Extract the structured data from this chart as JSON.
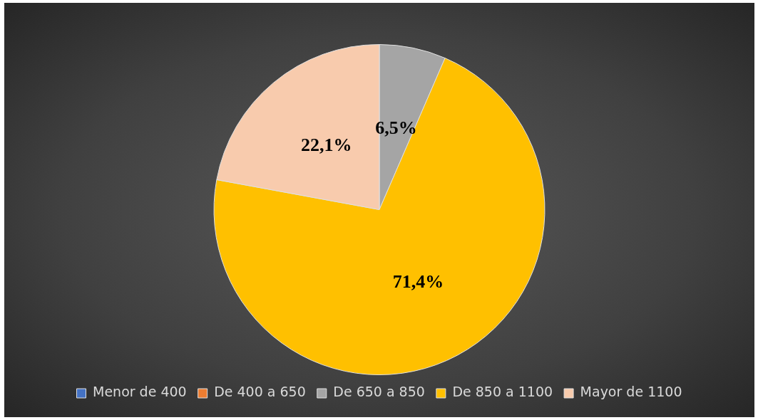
{
  "chart_data": {
    "type": "pie",
    "categories": [
      "Menor de 400",
      "De 400 a 650",
      "De 650 a 850",
      "De 850 a 1100",
      "Mayor de 1100"
    ],
    "values": [
      0,
      0,
      6.5,
      71.4,
      22.1
    ],
    "colors": [
      "#4472c4",
      "#ed7d31",
      "#a5a5a5",
      "#ffc000",
      "#f8cbad"
    ],
    "value_labels": [
      null,
      null,
      "6,5%",
      "71,4%",
      "22,1%"
    ],
    "legend": "bottom"
  }
}
